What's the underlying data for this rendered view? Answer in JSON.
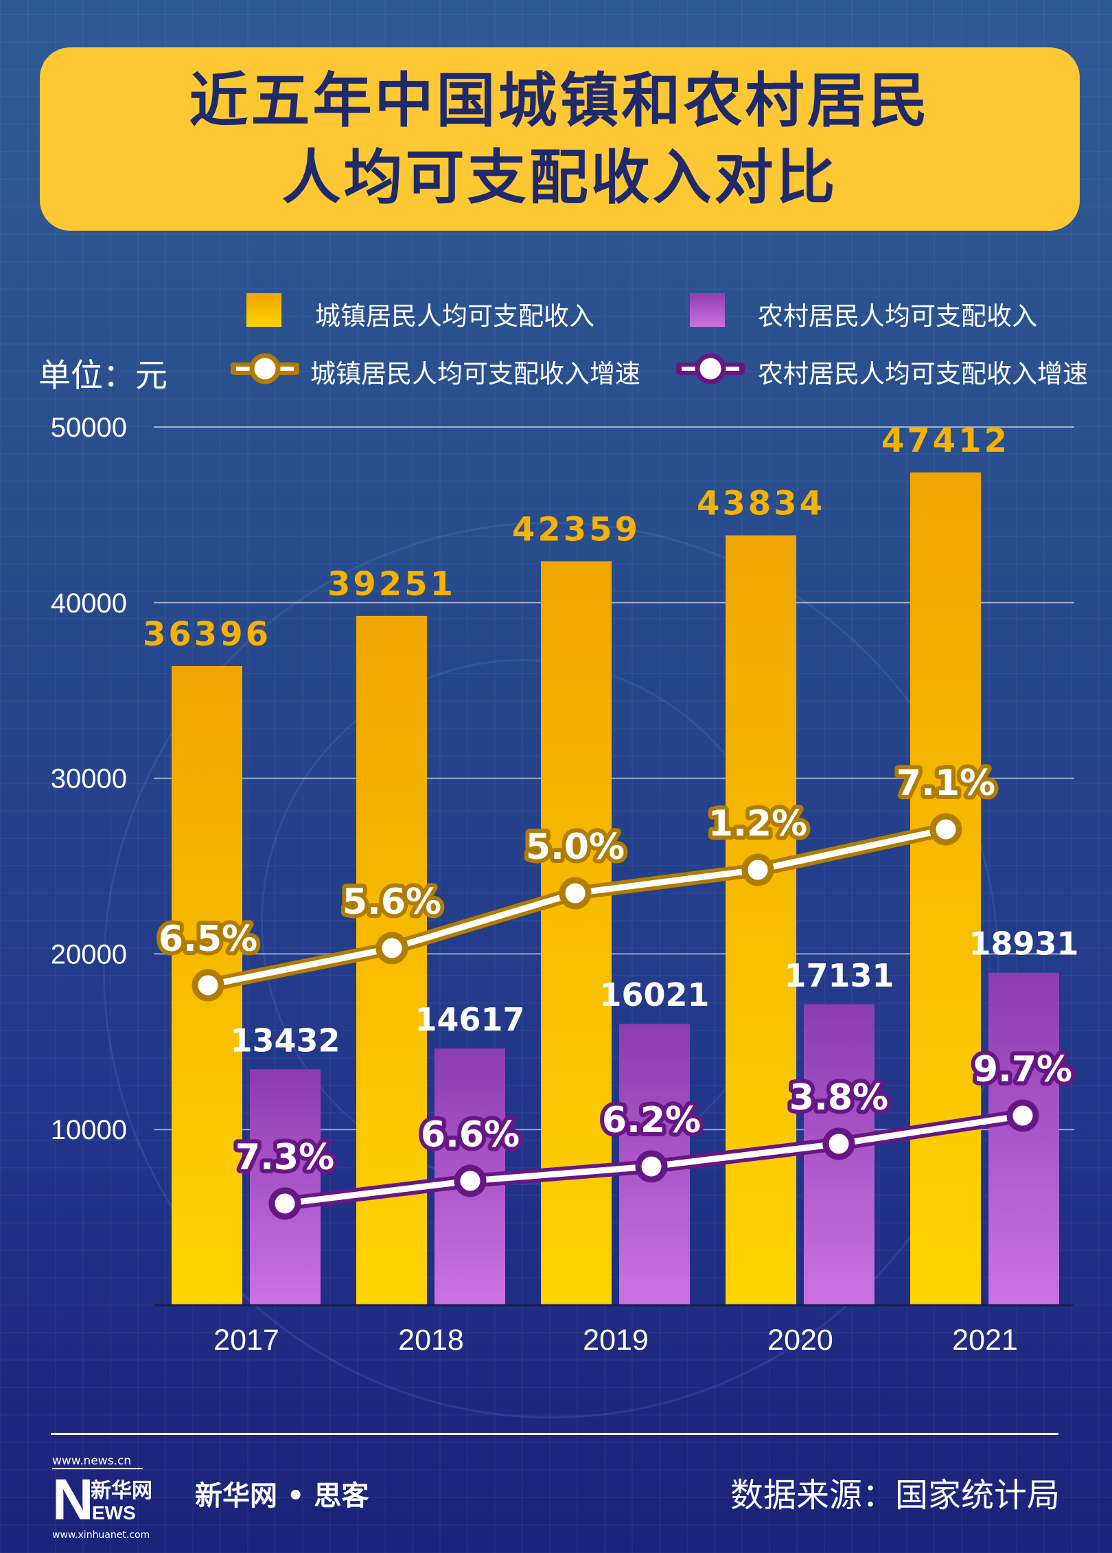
{
  "title": {
    "line1": "近五年中国城镇和农村居民",
    "line2": "人均可支配收入对比"
  },
  "legend": {
    "urban_bar": "城镇居民人均可支配收入",
    "rural_bar": "农村居民人均可支配收入",
    "urban_line": "城镇居民人均可支配收入增速",
    "rural_line": "农村居民人均可支配收入增速"
  },
  "unit": "单位：元",
  "colors": {
    "urban": "#f2a900",
    "urban_light": "#ffd400",
    "rural": "#8d3daf",
    "rural_light": "#cb70e3",
    "urban_line": "#b07d00",
    "rural_line": "#661785",
    "title_bg": "#fec834",
    "title_text": "#1f2a6a"
  },
  "chart_data": {
    "type": "bar",
    "title": "近五年中国城镇和农村居民人均可支配收入对比",
    "ylabel": "单位：元",
    "ylim": [
      0,
      50000
    ],
    "yticks": [
      "10000",
      "20000",
      "30000",
      "40000",
      "50000"
    ],
    "categories": [
      "2017",
      "2018",
      "2019",
      "2020",
      "2021"
    ],
    "series": [
      {
        "name": "城镇居民人均可支配收入",
        "type": "bar",
        "values": [
          36396,
          39251,
          42359,
          43834,
          47412
        ]
      },
      {
        "name": "农村居民人均可支配收入",
        "type": "bar",
        "values": [
          13432,
          14617,
          16021,
          17131,
          18931
        ]
      },
      {
        "name": "城镇居民人均可支配收入增速",
        "type": "line",
        "labels": [
          "6.5%",
          "5.6%",
          "5.0%",
          "1.2%",
          "7.1%"
        ]
      },
      {
        "name": "农村居民人均可支配收入增速",
        "type": "line",
        "labels": [
          "7.3%",
          "6.6%",
          "6.2%",
          "3.8%",
          "9.7%"
        ]
      }
    ],
    "grid": true,
    "legend_position": "top"
  },
  "footer": {
    "logo_top": "www.news.cn",
    "logo_main": "新华网",
    "logo_news": "NEWS",
    "logo_bottom": "www.xinhuanet.com",
    "brand": "新华网 • 思客",
    "source": "数据来源：国家统计局"
  }
}
